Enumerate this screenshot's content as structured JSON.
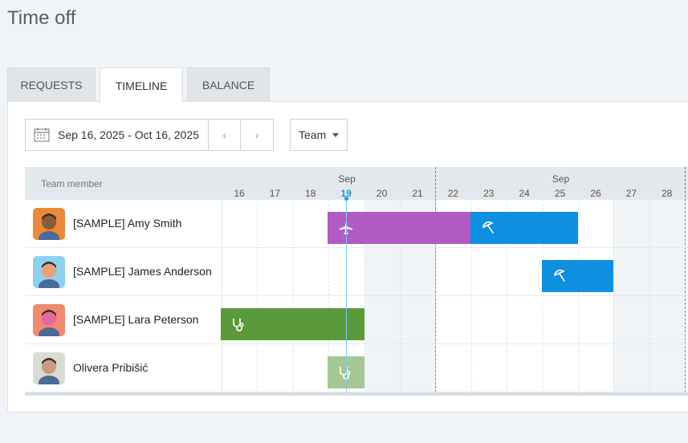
{
  "page": {
    "title": "Time off"
  },
  "tabs": [
    {
      "label": "REQUESTS"
    },
    {
      "label": "TIMELINE",
      "active": true
    },
    {
      "label": "BALANCE"
    }
  ],
  "toolbar": {
    "date_range": "Sep 16, 2025 - Oct 16, 2025",
    "prev_glyph": "‹",
    "next_glyph": "›",
    "team_label": "Team"
  },
  "timeline": {
    "member_header": "Team member",
    "months": [
      "Sep",
      "Sep"
    ],
    "days": [
      "16",
      "17",
      "18",
      "19",
      "20",
      "21",
      "22",
      "23",
      "24",
      "25",
      "26",
      "27",
      "28"
    ],
    "today": "19",
    "weekend_days": [
      "20",
      "21",
      "27",
      "28"
    ]
  },
  "members": [
    {
      "name": "[SAMPLE] Amy Smith",
      "avatar_bg": "#e88a3a",
      "avatar_skin": "#8b5a3c"
    },
    {
      "name": "[SAMPLE] James Anderson",
      "avatar_bg": "#8fd0f0",
      "avatar_skin": "#e8a07a"
    },
    {
      "name": "[SAMPLE] Lara Peterson",
      "avatar_bg": "#f08a70",
      "avatar_skin": "#e06aa0"
    },
    {
      "name": "Olivera Pribišić",
      "avatar_bg": "#d9dcd4",
      "avatar_skin": "#c99a80"
    }
  ],
  "absences": [
    {
      "member": 0,
      "type": "travel",
      "icon": "airplane-icon",
      "start": "19",
      "end": "22",
      "color": "#b05cc4"
    },
    {
      "member": 0,
      "type": "vacation",
      "icon": "umbrella-icon",
      "start": "23",
      "end": "25",
      "color": "#0f8fe0"
    },
    {
      "member": 1,
      "type": "vacation",
      "icon": "umbrella-icon",
      "start": "25",
      "end": "26",
      "color": "#0f8fe0"
    },
    {
      "member": 2,
      "type": "sick",
      "icon": "stethoscope-icon",
      "start": "16",
      "end": "19",
      "color": "#5a9a3c"
    },
    {
      "member": 3,
      "type": "sick",
      "icon": "stethoscope-icon",
      "start": "19",
      "end": "19",
      "color": "#a4c794"
    }
  ]
}
